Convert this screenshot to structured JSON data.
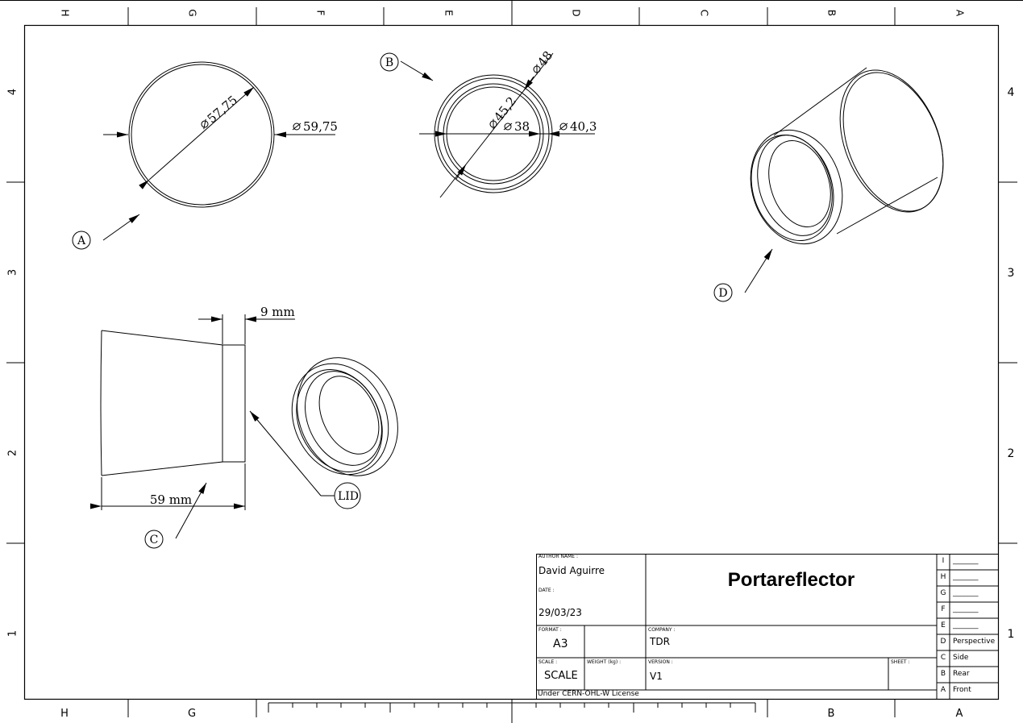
{
  "sheet": {
    "top_columns": [
      "H",
      "G",
      "F",
      "E",
      "D",
      "C",
      "B",
      "A"
    ],
    "bottom_columns": [
      "H",
      "G",
      "B",
      "A"
    ],
    "rows": [
      "4",
      "3",
      "2",
      "1"
    ]
  },
  "views": {
    "callout_a": "A",
    "callout_b": "B",
    "callout_c": "C",
    "callout_d": "D",
    "callout_lid": "LID",
    "dim_57_75": "57,75",
    "dim_59_75": "59,75",
    "dim_48": "48",
    "dim_45_2": "45,2",
    "dim_38": "38",
    "dim_40_3": "40,3",
    "dim_9mm": "9 mm",
    "dim_59mm": "59 mm"
  },
  "title_block": {
    "author_label": "AUTHOR NAME :",
    "author": "David Aguirre",
    "date_label": "DATE :",
    "date": "29/03/23",
    "title": "Portareflector",
    "format_label": "FORMAT :",
    "format": "A3",
    "company_label": "COMPANY :",
    "company": "TDR",
    "scale_label": "SCALE :",
    "scale": "SCALE",
    "weight_label": "WEIGHT (kg) :",
    "version_label": "VERSION :",
    "version": "V1",
    "sheet_label": "SHEET :",
    "license": "Under CERN-OHL-W License"
  },
  "revisions": [
    {
      "letter": "I",
      "text": "_______"
    },
    {
      "letter": "H",
      "text": "_______"
    },
    {
      "letter": "G",
      "text": "_______"
    },
    {
      "letter": "F",
      "text": "_______"
    },
    {
      "letter": "E",
      "text": "_______"
    },
    {
      "letter": "D",
      "text": "Perspective"
    },
    {
      "letter": "C",
      "text": "Side"
    },
    {
      "letter": "B",
      "text": "Rear"
    },
    {
      "letter": "A",
      "text": "Front"
    }
  ]
}
